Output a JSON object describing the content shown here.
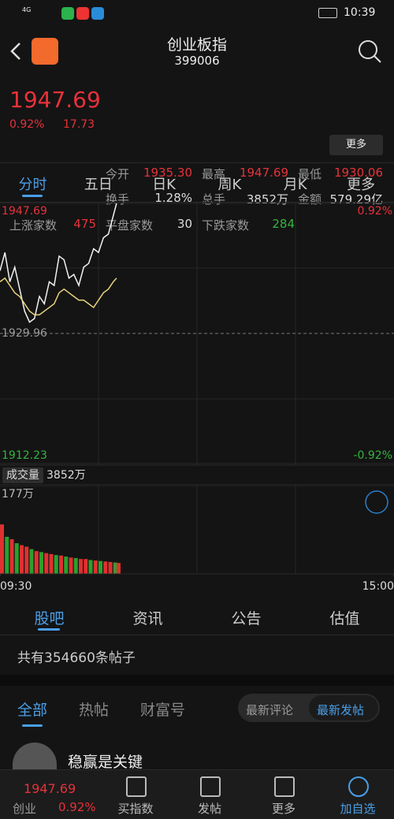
{
  "status_bar": {
    "network": "4G",
    "time": "10:39"
  },
  "header": {
    "title": "创业板指",
    "code": "399006"
  },
  "quote": {
    "price": "1947.69",
    "change_pct": "0.92%",
    "change": "17.73",
    "stats": [
      {
        "label": "今开",
        "value": "1935.30"
      },
      {
        "label": "最高",
        "value": "1947.69"
      },
      {
        "label": "最低",
        "value": "1930.06"
      },
      {
        "label": "换手",
        "value": "1.28%"
      },
      {
        "label": "总手",
        "value": "3852万"
      },
      {
        "label": "金额",
        "value": "579.29亿"
      }
    ],
    "breadth": [
      {
        "label": "上涨家数",
        "value": "475"
      },
      {
        "label": "平盘家数",
        "value": "30"
      },
      {
        "label": "下跌家数",
        "value": "284"
      }
    ],
    "more_button": "更多"
  },
  "tabs": [
    "分时",
    "五日",
    "日K",
    "周K",
    "月K",
    "更多"
  ],
  "chart_data": [
    {
      "type": "line",
      "x": [
        0,
        3,
        6,
        9,
        12,
        15,
        18,
        21,
        24,
        27,
        30,
        33,
        36,
        39,
        42,
        45,
        48,
        51,
        54,
        57,
        60,
        63,
        66,
        69,
        71
      ],
      "series": [
        {
          "name": "price",
          "color": "#f2f2f2",
          "values": [
            1938.5,
            1941,
            1937,
            1939,
            1936,
            1933,
            1931.5,
            1932,
            1935,
            1934,
            1937,
            1936.5,
            1940.5,
            1940,
            1937.5,
            1938,
            1936.5,
            1939,
            1939.5,
            1941.5,
            1941,
            1943,
            1943.5,
            1946,
            1947.69
          ]
        },
        {
          "name": "average",
          "color": "#e8d27a",
          "values": [
            1937,
            1937.5,
            1936.5,
            1935.5,
            1935,
            1934,
            1933,
            1932.5,
            1932.5,
            1933,
            1933.5,
            1934,
            1935.5,
            1936,
            1935.5,
            1935,
            1934.5,
            1934.5,
            1934,
            1933.5,
            1934.5,
            1935.5,
            1936,
            1937,
            1937.5
          ]
        }
      ],
      "xlim": [
        0,
        240
      ],
      "ylim": [
        1912.23,
        1947.69
      ],
      "yticks": [
        1947.69,
        1929.96,
        1912.23
      ],
      "y2lim": [
        -0.92,
        0.92
      ],
      "y2ticks": [
        {
          "value": 0.92,
          "label": "0.92%"
        },
        {
          "value": -0.92,
          "label": "-0.92%"
        }
      ]
    },
    {
      "type": "bar",
      "title": "成交量",
      "subtitle": "3852万",
      "x": [
        0,
        3,
        6,
        9,
        12,
        15,
        18,
        21,
        24,
        27,
        30,
        33,
        36,
        39,
        42,
        45,
        48,
        51,
        54,
        57,
        60,
        63,
        66,
        69,
        71
      ],
      "values": [
        100,
        75,
        70,
        62,
        58,
        55,
        50,
        46,
        44,
        42,
        40,
        38,
        37,
        35,
        33,
        32,
        30,
        30,
        28,
        27,
        26,
        25,
        24,
        23,
        22
      ],
      "colors": [
        "#e03030",
        "#2ca02c",
        "#e03030",
        "#2ca02c",
        "#e03030",
        "#e03030",
        "#2ca02c",
        "#e03030",
        "#2ca02c",
        "#e03030",
        "#e03030",
        "#2ca02c",
        "#e03030",
        "#2ca02c",
        "#e03030",
        "#2ca02c",
        "#e03030",
        "#e03030",
        "#2ca02c",
        "#e03030",
        "#2ca02c",
        "#e03030",
        "#e03030",
        "#2ca02c",
        "#e03030"
      ],
      "xlim": [
        0,
        240
      ],
      "xticks": [
        {
          "value": 0,
          "label": "09:30"
        },
        {
          "value": 240,
          "label": "15:00"
        }
      ],
      "ylim": [
        0,
        177
      ],
      "yticks": [
        {
          "value": 177,
          "label": "177万"
        }
      ]
    }
  ],
  "section_tabs": [
    "股吧",
    "资讯",
    "公告",
    "估值"
  ],
  "post_count": "共有354660条帖子",
  "filter_tabs": [
    "全部",
    "热帖",
    "财富号"
  ],
  "sort_buttons": [
    "最新评论",
    "最新发帖"
  ],
  "post": {
    "author": "稳赢是关键"
  },
  "bottom_bar": {
    "price": "1947.69",
    "name": "创业",
    "change_pct": "0.92%",
    "buttons": [
      "买指数",
      "发帖",
      "更多",
      "加自选"
    ]
  }
}
